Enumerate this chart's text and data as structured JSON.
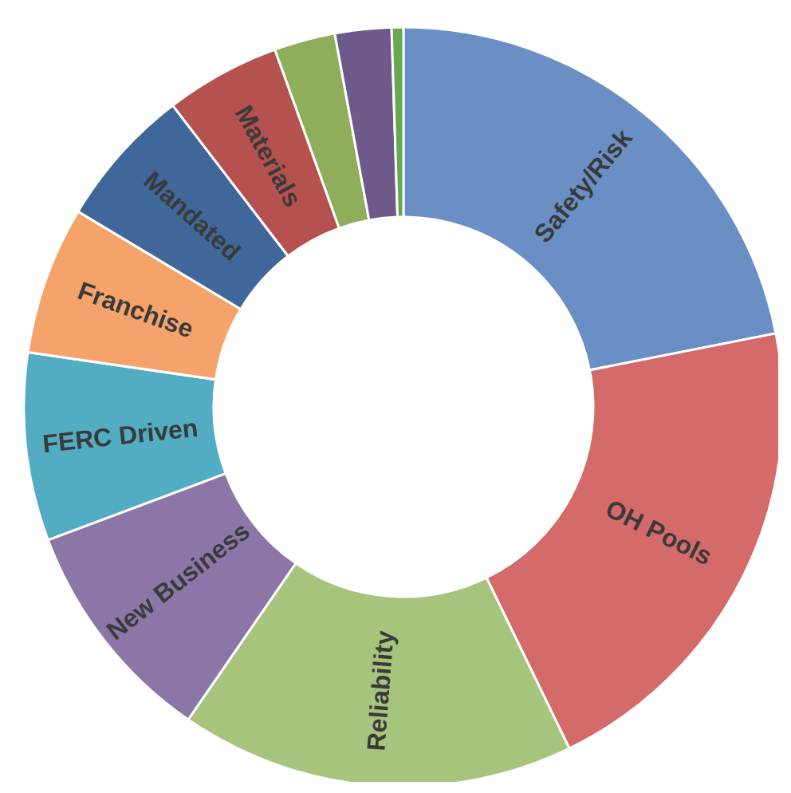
{
  "chart_data": {
    "type": "donut",
    "categories": [
      "Safety/Risk",
      "OH Pools",
      "Reliability",
      "New Business",
      "FERC Driven",
      "Franchise",
      "Mandated",
      "Materials",
      null,
      null,
      null
    ],
    "values": [
      21.9,
      20.9,
      16.8,
      9.7,
      8,
      6.3,
      6,
      4.9,
      2.6,
      2.4,
      0.5
    ],
    "colors": [
      "#6a8fc4",
      "#d46a6a",
      "#a7c47c",
      "#8c76a8",
      "#52acc2",
      "#f5a36b",
      "#3f679a",
      "#b5514e",
      "#8fae5c",
      "#6e5a8a",
      "#6aa84f"
    ],
    "legend": false
  }
}
